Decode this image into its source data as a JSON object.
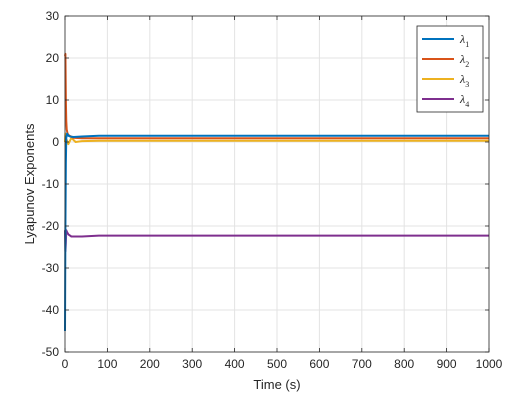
{
  "chart_data": {
    "type": "line",
    "title": "",
    "xlabel": "Time (s)",
    "ylabel": "Lyapunov Exponents",
    "xlim": [
      0,
      1000
    ],
    "ylim": [
      -50,
      30
    ],
    "xticks": [
      0,
      100,
      200,
      300,
      400,
      500,
      600,
      700,
      800,
      900,
      1000
    ],
    "yticks": [
      -50,
      -40,
      -30,
      -20,
      -10,
      0,
      10,
      20,
      30
    ],
    "grid": true,
    "legend_position": "top-right",
    "series": [
      {
        "name": "λ",
        "subscript": "1",
        "color": "#0072BD",
        "x": [
          0,
          1,
          2,
          3,
          5,
          8,
          12,
          20,
          40,
          80,
          150,
          300,
          600,
          1000
        ],
        "y": [
          -45,
          -20,
          -5,
          1,
          2,
          1.5,
          1.3,
          1.2,
          1.3,
          1.5,
          1.5,
          1.5,
          1.5,
          1.5
        ]
      },
      {
        "name": "λ",
        "subscript": "2",
        "color": "#D95319",
        "x": [
          0,
          1,
          2,
          3,
          4,
          6,
          10,
          20,
          40,
          80,
          150,
          300,
          600,
          1000
        ],
        "y": [
          20.5,
          21,
          10,
          5,
          3,
          2,
          1.5,
          1.0,
          0.9,
          0.9,
          0.9,
          0.9,
          0.9,
          0.9
        ]
      },
      {
        "name": "λ",
        "subscript": "3",
        "color": "#EDB120",
        "x": [
          0,
          1,
          2,
          4,
          8,
          15,
          25,
          40,
          80,
          150,
          300,
          600,
          1000
        ],
        "y": [
          0,
          2,
          -1,
          0.5,
          -0.5,
          1,
          0,
          0.2,
          0.3,
          0.3,
          0.3,
          0.3,
          0.3
        ]
      },
      {
        "name": "λ",
        "subscript": "4",
        "color": "#7E2F8E",
        "x": [
          0,
          1,
          2,
          3,
          5,
          8,
          15,
          25,
          40,
          80,
          150,
          300,
          600,
          1000
        ],
        "y": [
          -21,
          -26,
          -24,
          -21,
          -21.5,
          -22,
          -22.5,
          -22.5,
          -22.5,
          -22.3,
          -22.3,
          -22.3,
          -22.3,
          -22.3
        ]
      }
    ]
  }
}
